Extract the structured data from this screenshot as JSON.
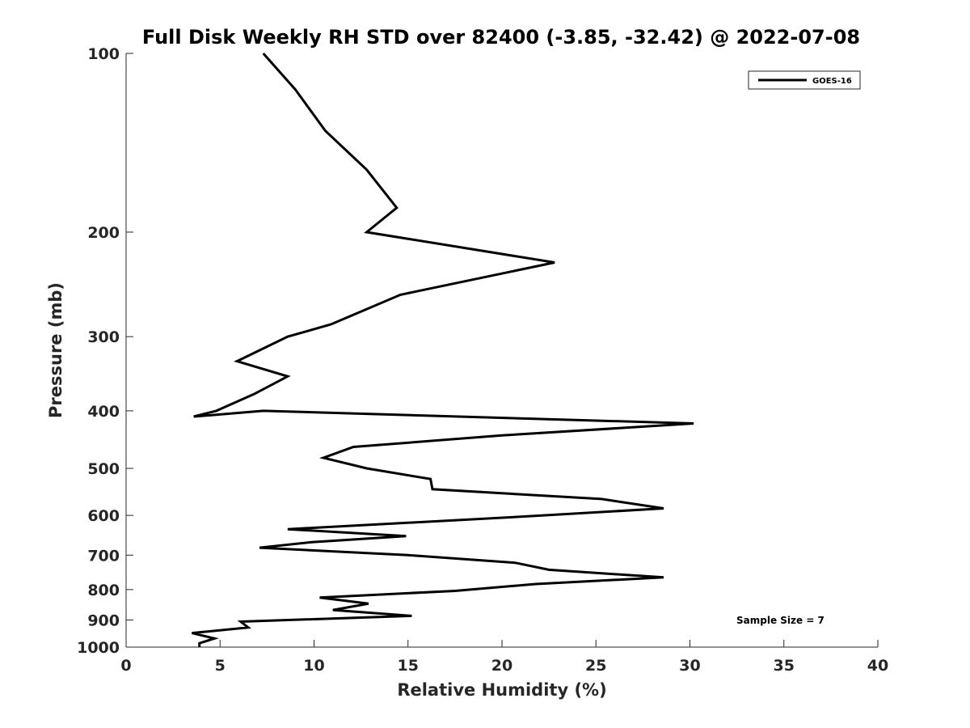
{
  "chart_data": {
    "type": "line",
    "title": "Full Disk Weekly RH STD over 82400 (-3.85, -32.42) @ 2022-07-08",
    "xlabel": "Relative Humidity (%)",
    "ylabel": "Pressure (mb)",
    "xlim": [
      0,
      40
    ],
    "ylim": [
      100,
      1000
    ],
    "y_scale": "log",
    "y_direction": "reversed",
    "grid": false,
    "legend_position": "top-right",
    "x_ticks": [
      "0",
      "5",
      "10",
      "15",
      "20",
      "25",
      "30",
      "35",
      "40"
    ],
    "y_ticks": [
      "100",
      "200",
      "300",
      "400",
      "500",
      "600",
      "700",
      "800",
      "900",
      "1000"
    ],
    "series": [
      {
        "name": "GOES-16",
        "color": "#000000",
        "points": [
          [
            7.3,
            100
          ],
          [
            9.0,
            115
          ],
          [
            10.6,
            135
          ],
          [
            12.8,
            157
          ],
          [
            14.4,
            182
          ],
          [
            12.8,
            200
          ],
          [
            22.8,
            225
          ],
          [
            14.6,
            255
          ],
          [
            10.9,
            286
          ],
          [
            8.6,
            300
          ],
          [
            5.9,
            330
          ],
          [
            8.6,
            350
          ],
          [
            6.8,
            375
          ],
          [
            4.8,
            400
          ],
          [
            3.6,
            409
          ],
          [
            7.3,
            400
          ],
          [
            30.2,
            420
          ],
          [
            20.0,
            440
          ],
          [
            12.1,
            460
          ],
          [
            10.5,
            480
          ],
          [
            12.8,
            500
          ],
          [
            16.2,
            521
          ],
          [
            16.3,
            542
          ],
          [
            25.3,
            563
          ],
          [
            28.6,
            584
          ],
          [
            21.0,
            603
          ],
          [
            8.6,
            633
          ],
          [
            14.9,
            650
          ],
          [
            9.8,
            666
          ],
          [
            7.1,
            680
          ],
          [
            15.0,
            700
          ],
          [
            20.7,
            721
          ],
          [
            22.5,
            741
          ],
          [
            28.6,
            763
          ],
          [
            21.8,
            783
          ],
          [
            17.5,
            804
          ],
          [
            10.3,
            825
          ],
          [
            12.9,
            845
          ],
          [
            11.0,
            866
          ],
          [
            15.2,
            886
          ],
          [
            6.1,
            906
          ],
          [
            6.5,
            927
          ],
          [
            3.5,
            947
          ],
          [
            4.7,
            967
          ],
          [
            3.9,
            985
          ],
          [
            3.9,
            1000
          ]
        ]
      }
    ],
    "annotations": [
      "Sample Size = 7"
    ]
  }
}
